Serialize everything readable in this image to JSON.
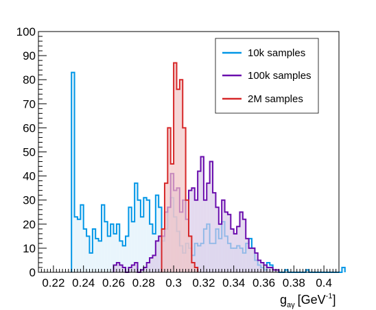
{
  "chart_data": {
    "type": "histogram",
    "title": "",
    "xlabel": "g_aγ [GeV^-1]",
    "xlabel_parts": {
      "base": "g",
      "sub": "aγ",
      "unit_open": "[GeV",
      "sup": "-1",
      "unit_close": "]"
    },
    "ylabel": "",
    "xlim": [
      0.21,
      0.41
    ],
    "ylim": [
      0,
      100
    ],
    "grid": false,
    "legend_position": "top-right",
    "x_ticks": [
      "0.22",
      "0.24",
      "0.26",
      "0.28",
      "0.3",
      "0.32",
      "0.34",
      "0.36",
      "0.38",
      "0.4"
    ],
    "x_tick_values": [
      0.22,
      0.24,
      0.26,
      0.28,
      0.3,
      0.32,
      0.34,
      0.36,
      0.38,
      0.4
    ],
    "y_ticks": [
      "0",
      "10",
      "20",
      "30",
      "40",
      "50",
      "60",
      "70",
      "80",
      "90",
      "100"
    ],
    "y_tick_values": [
      0,
      10,
      20,
      30,
      40,
      50,
      60,
      70,
      80,
      90,
      100
    ],
    "bin_width": 0.002,
    "series": [
      {
        "name": "10k samples",
        "color": "#0096e6",
        "fill": "#dff1fb",
        "x_start": 0.232,
        "values": [
          83,
          23,
          22,
          28,
          18,
          15,
          8,
          18,
          14,
          13,
          28,
          21,
          15,
          20,
          16,
          20,
          13,
          11,
          15,
          27,
          21,
          37,
          30,
          23,
          31,
          30,
          20,
          16,
          32,
          27,
          13,
          18,
          27,
          31,
          23,
          17,
          11,
          8,
          12,
          10,
          7,
          12,
          11,
          12,
          18,
          20,
          12,
          12,
          18,
          14,
          21,
          15,
          12,
          10,
          10,
          11,
          10,
          8,
          12,
          14,
          10,
          5,
          3,
          2,
          1,
          4,
          3,
          1,
          1,
          0,
          0,
          1,
          0,
          0,
          0,
          0,
          0,
          0,
          1,
          0,
          0,
          0,
          0,
          0,
          0,
          0,
          0,
          0,
          0,
          0,
          2
        ]
      },
      {
        "name": "100k samples",
        "color": "#6a0dad",
        "fill": "#d8cbe8",
        "x_start": 0.26,
        "values": [
          3,
          4,
          3,
          2,
          0,
          2,
          3,
          4,
          0,
          1,
          2,
          4,
          6,
          7,
          13,
          15,
          15,
          25,
          27,
          41,
          34,
          35,
          25,
          30,
          22,
          34,
          35,
          30,
          42,
          48,
          30,
          37,
          46,
          33,
          27,
          20,
          30,
          25,
          24,
          18,
          16,
          19,
          25,
          22,
          14,
          10,
          10,
          8,
          5,
          4,
          3,
          2,
          2,
          1,
          1
        ]
      },
      {
        "name": "2M samples",
        "color": "#d62728",
        "fill": "#f2c4c4",
        "x_start": 0.292,
        "values": [
          18,
          37,
          60,
          45,
          87,
          76,
          80,
          60,
          30,
          15,
          4,
          2
        ]
      }
    ]
  }
}
